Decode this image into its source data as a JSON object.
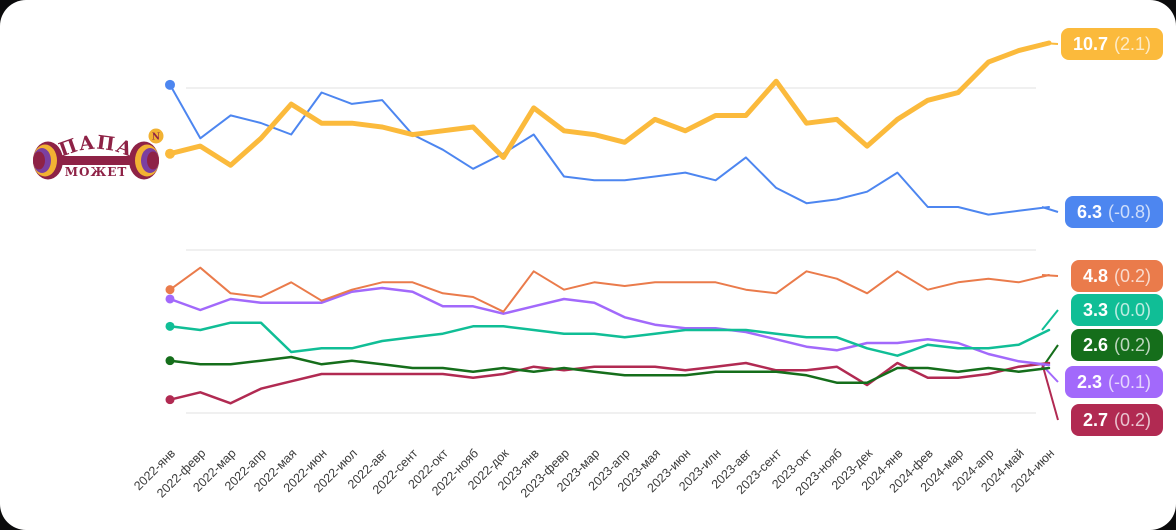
{
  "page": {
    "card_background": "#ffffff",
    "page_background": "#0b0b0c",
    "gridline_color": "#ececec",
    "axis_label_color": "#3b3b3b"
  },
  "logo": {
    "line1": "ПАПА",
    "line2": "МОЖЕТ",
    "badge_letter": "N",
    "primary_color": "#8E2246",
    "gold_color": "#F2B233",
    "purple_color": "#7B3FA0"
  },
  "chart_data": {
    "type": "line",
    "title": "",
    "xlabel": "",
    "ylabel": "",
    "grid": true,
    "legend_position": "right-badges",
    "categories": [
      "2022-янв",
      "2022-февр",
      "2022-мар",
      "2022-апр",
      "2022-мая",
      "2022-июн",
      "2022-июл",
      "2022-авг",
      "2022-сент",
      "2022-окт",
      "2022-нояб",
      "2022-док",
      "2023-янв",
      "2023-февр",
      "2023-мар",
      "2023-апр",
      "2023-мая",
      "2023-июн",
      "2023-илн",
      "2023-авг",
      "2023-сент",
      "2023-окт",
      "2023-нояб",
      "2023-дек",
      "2024-янв",
      "2024-фев",
      "2024-мар",
      "2024-апр",
      "2024-май",
      "2024-июн"
    ],
    "series": [
      {
        "id": "yellow",
        "color": "#FBBA3C",
        "badge": {
          "value": "10.7",
          "delta": "(2.1)"
        },
        "last_value": 10.7,
        "values": [
          7.8,
          8.0,
          7.5,
          8.2,
          9.1,
          8.6,
          8.6,
          8.5,
          8.3,
          8.4,
          8.5,
          7.7,
          9.0,
          8.4,
          8.3,
          8.1,
          8.7,
          8.4,
          8.8,
          8.8,
          9.7,
          8.6,
          8.7,
          8.0,
          8.7,
          9.2,
          9.4,
          10.2,
          10.5,
          10.7
        ]
      },
      {
        "id": "blue",
        "color": "#4D86F0",
        "badge": {
          "value": "6.3",
          "delta": "(-0.8)"
        },
        "last_value": 6.3,
        "values": [
          9.5,
          8.1,
          8.7,
          8.5,
          8.2,
          9.3,
          9.0,
          9.1,
          8.2,
          7.8,
          7.3,
          7.7,
          8.2,
          7.1,
          7.0,
          7.0,
          7.1,
          7.2,
          7.0,
          7.6,
          6.8,
          6.4,
          6.5,
          6.7,
          7.2,
          6.3,
          6.3,
          6.1,
          6.2,
          6.3
        ]
      },
      {
        "id": "orange",
        "color": "#EA7B4B",
        "badge": {
          "value": "4.8",
          "delta": "(0.2)"
        },
        "last_value": 4.8,
        "values": [
          4.4,
          5.0,
          4.3,
          4.2,
          4.6,
          4.1,
          4.4,
          4.6,
          4.6,
          4.3,
          4.2,
          3.8,
          4.9,
          4.4,
          4.6,
          4.5,
          4.6,
          4.6,
          4.6,
          4.4,
          4.3,
          4.9,
          4.7,
          4.3,
          4.9,
          4.4,
          4.6,
          4.7,
          4.6,
          4.8
        ]
      },
      {
        "id": "teal",
        "color": "#10BE96",
        "badge": {
          "value": "3.3",
          "delta": "(0.0)"
        },
        "last_value": 3.3,
        "values": [
          3.4,
          3.3,
          3.5,
          3.5,
          2.7,
          2.8,
          2.8,
          3.0,
          3.1,
          3.2,
          3.4,
          3.4,
          3.3,
          3.2,
          3.2,
          3.1,
          3.2,
          3.3,
          3.3,
          3.3,
          3.2,
          3.1,
          3.1,
          2.8,
          2.6,
          2.9,
          2.8,
          2.8,
          2.9,
          3.3
        ]
      },
      {
        "id": "green",
        "color": "#156E1B",
        "badge": {
          "value": "2.6",
          "delta": "(0.2)"
        },
        "last_value": 2.6,
        "values": [
          2.8,
          2.7,
          2.7,
          2.8,
          2.9,
          2.7,
          2.8,
          2.7,
          2.6,
          2.6,
          2.5,
          2.6,
          2.5,
          2.6,
          2.5,
          2.4,
          2.4,
          2.4,
          2.5,
          2.5,
          2.5,
          2.4,
          2.2,
          2.2,
          2.6,
          2.6,
          2.5,
          2.6,
          2.5,
          2.6
        ]
      },
      {
        "id": "purple",
        "color": "#A269FB",
        "badge": {
          "value": "2.3",
          "delta": "(-0.1)"
        },
        "last_value": 2.3,
        "values": [
          4.1,
          3.8,
          4.1,
          4.0,
          4.0,
          4.0,
          4.3,
          4.4,
          4.3,
          3.9,
          3.9,
          3.7,
          3.9,
          4.1,
          4.0,
          3.6,
          3.4,
          3.3,
          3.3,
          3.2,
          3.0,
          2.8,
          2.7,
          2.9,
          2.9,
          3.0,
          2.9,
          2.6,
          2.4,
          2.3
        ]
      },
      {
        "id": "crimson",
        "color": "#B12A52",
        "badge": {
          "value": "2.7",
          "delta": "(0.2)"
        },
        "last_value": 2.7,
        "values": [
          1.7,
          1.9,
          1.6,
          2.0,
          2.2,
          2.4,
          2.4,
          2.4,
          2.4,
          2.4,
          2.3,
          2.4,
          2.6,
          2.5,
          2.6,
          2.6,
          2.6,
          2.5,
          2.6,
          2.7,
          2.5,
          2.5,
          2.6,
          2.1,
          2.7,
          2.3,
          2.3,
          2.4,
          2.6,
          2.7
        ]
      }
    ]
  }
}
